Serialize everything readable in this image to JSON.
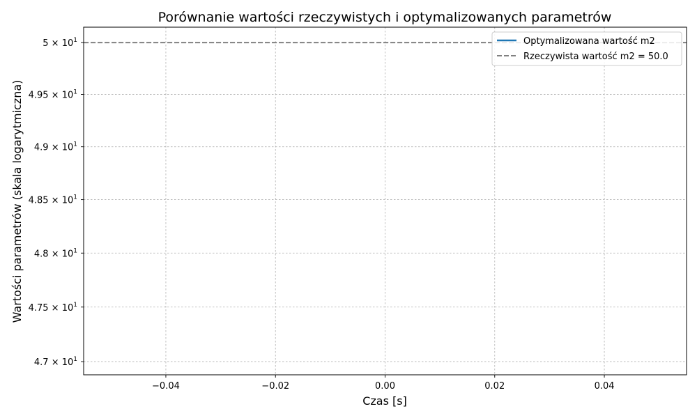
{
  "chart_data": {
    "type": "line",
    "title": "Porównanie wartości rzeczywistych i optymalizowanych parametrów",
    "xlabel": "Czas [s]",
    "ylabel": "Wartości parametrów (skala logarytmiczna)",
    "yscale": "log",
    "xlim": [
      -0.055,
      0.055
    ],
    "ylim": [
      46.88,
      50.15
    ],
    "x_ticks": [
      {
        "value": -0.04,
        "label": "−0.04"
      },
      {
        "value": -0.02,
        "label": "−0.02"
      },
      {
        "value": 0.0,
        "label": "0.00"
      },
      {
        "value": 0.02,
        "label": "0.02"
      },
      {
        "value": 0.04,
        "label": "0.04"
      }
    ],
    "y_ticks": [
      {
        "value": 50.0,
        "mantissa": "5",
        "times": "×",
        "base": "10",
        "exp": "1"
      },
      {
        "value": 49.5,
        "mantissa": "4.95",
        "times": "×",
        "base": "10",
        "exp": "1"
      },
      {
        "value": 49.0,
        "mantissa": "4.9",
        "times": "×",
        "base": "10",
        "exp": "1"
      },
      {
        "value": 48.5,
        "mantissa": "4.85",
        "times": "×",
        "base": "10",
        "exp": "1"
      },
      {
        "value": 48.0,
        "mantissa": "4.8",
        "times": "×",
        "base": "10",
        "exp": "1"
      },
      {
        "value": 47.5,
        "mantissa": "4.75",
        "times": "×",
        "base": "10",
        "exp": "1"
      },
      {
        "value": 47.0,
        "mantissa": "4.7",
        "times": "×",
        "base": "10",
        "exp": "1"
      }
    ],
    "series": [
      {
        "name": "Optymalizowana wartość m2",
        "style": "solid",
        "color": "#1f77b4",
        "x": [
          0.0
        ],
        "y": [
          50.0
        ]
      },
      {
        "name": "Rzeczywista wartość m2 = 50.0",
        "style": "dashed",
        "color": "#808080",
        "type": "hline",
        "y": 50.0
      }
    ],
    "grid": true,
    "legend_position": "top-right"
  }
}
